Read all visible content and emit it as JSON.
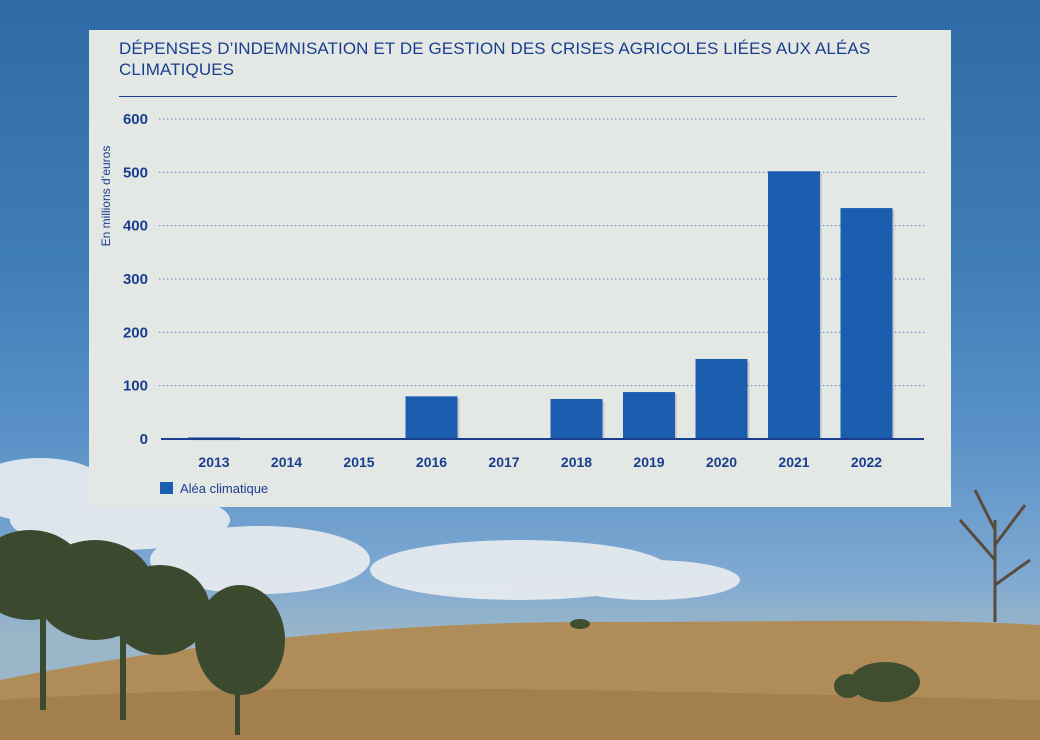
{
  "colors": {
    "bar": "#1b5eb0",
    "text": "#1a3d8f",
    "panel": "#e4e8e4",
    "grid": "#5a7fc4"
  },
  "chart_data": {
    "type": "bar",
    "title": "Dépenses d’indemnisation et de gestion des crises agricoles liées aux aléas climatiques",
    "ylabel": "En millions d’euros",
    "xlabel": "",
    "ylim": [
      0,
      600
    ],
    "yticks": [
      "0",
      "100",
      "200",
      "300",
      "400",
      "500",
      "600"
    ],
    "grid": true,
    "legend_position": "bottom-left",
    "categories": [
      "2013",
      "2014",
      "2015",
      "2016",
      "2017",
      "2018",
      "2019",
      "2020",
      "2021",
      "2022"
    ],
    "series": [
      {
        "name": "Aléa climatique",
        "values": [
          3,
          0,
          0,
          80,
          0,
          75,
          88,
          150,
          502,
          433
        ]
      }
    ]
  }
}
